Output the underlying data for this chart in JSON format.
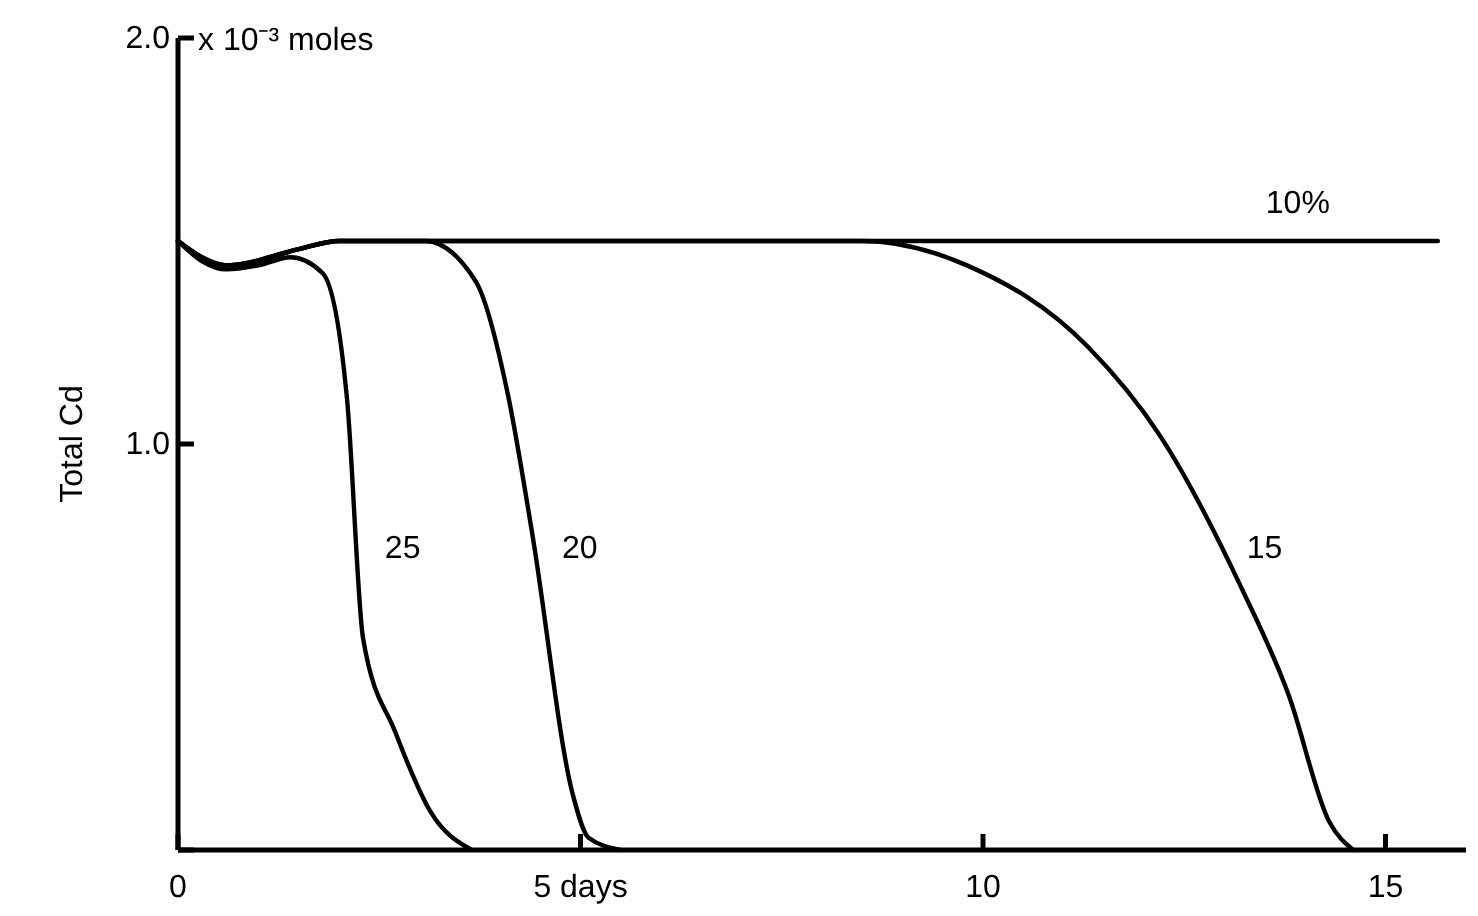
{
  "chart_data": {
    "type": "line",
    "ylabel": "Total Cd",
    "annotations": [
      "x 10⁻³ moles"
    ],
    "xlim": [
      0,
      16
    ],
    "ylim": [
      0,
      2
    ],
    "xticks": [
      0,
      {
        "value": 5,
        "label": "5 days"
      },
      10,
      15
    ],
    "yticks": [
      {
        "value": 0,
        "label": null
      },
      {
        "value": 1,
        "label": "1.0"
      },
      {
        "value": 2,
        "label": "2.0"
      }
    ],
    "line_style": "solid",
    "marker": "none",
    "series": [
      {
        "name": "10%",
        "color": "#000000",
        "x": [
          0,
          0.3,
          0.6,
          1.0,
          1.5,
          2.0,
          3,
          5,
          8,
          10,
          12,
          14,
          15.65
        ],
        "values": [
          1.5,
          1.46,
          1.44,
          1.45,
          1.48,
          1.5,
          1.5,
          1.5,
          1.5,
          1.5,
          1.5,
          1.5,
          1.5
        ]
      },
      {
        "name": "25",
        "color": "#000000",
        "x": [
          0,
          0.3,
          0.6,
          1.0,
          1.4,
          1.8,
          2.1,
          2.3,
          2.7,
          3.15,
          3.65
        ],
        "values": [
          1.5,
          1.45,
          1.43,
          1.44,
          1.46,
          1.42,
          1.11,
          0.52,
          0.29,
          0.09,
          0
        ]
      },
      {
        "name": "20",
        "color": "#000000",
        "x": [
          0,
          0.6,
          1.5,
          2.0,
          3.07,
          3.7,
          4.1,
          4.4,
          4.9,
          5.1,
          5.5
        ],
        "values": [
          1.5,
          1.44,
          1.48,
          1.5,
          1.5,
          1.4,
          1.12,
          0.78,
          0.14,
          0.03,
          0
        ]
      },
      {
        "name": "15",
        "color": "#000000",
        "x": [
          0,
          0.6,
          1.5,
          2.0,
          5,
          8.5,
          9.8,
          11.3,
          12.2,
          13.2,
          13.8,
          14.3,
          14.6
        ],
        "values": [
          1.5,
          1.44,
          1.48,
          1.5,
          1.5,
          1.5,
          1.44,
          1.24,
          1.02,
          0.65,
          0.38,
          0.07,
          0
        ]
      }
    ]
  }
}
